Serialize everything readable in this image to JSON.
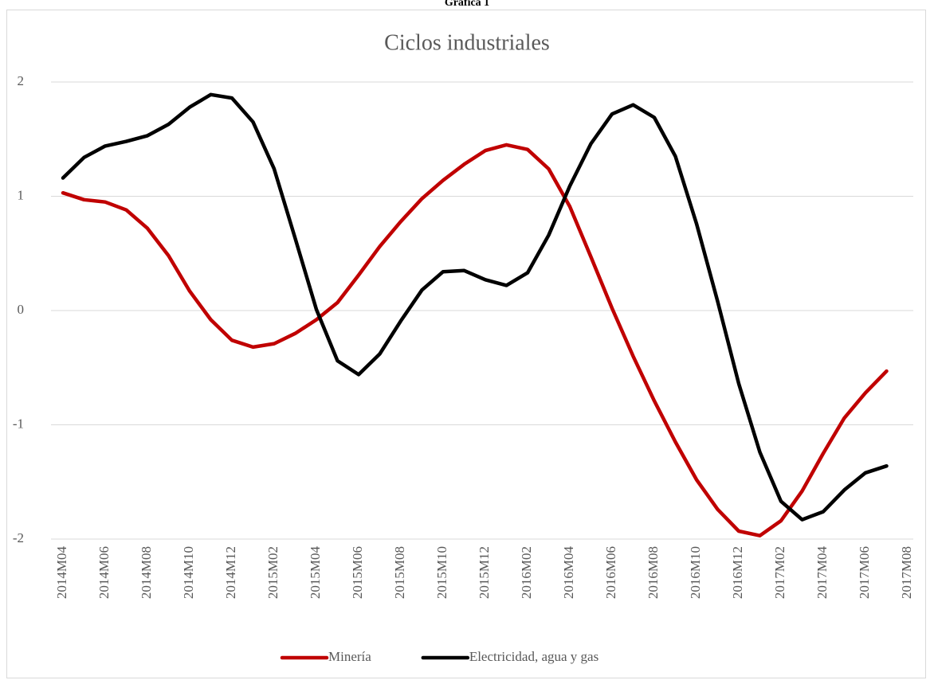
{
  "heading": "Gráfica 1",
  "chart_data": {
    "type": "line",
    "title": "Ciclos industriales",
    "categories": [
      "2014M04",
      null,
      "2014M06",
      null,
      "2014M08",
      null,
      "2014M10",
      null,
      "2014M12",
      null,
      "2015M02",
      null,
      "2015M04",
      null,
      "2015M06",
      null,
      "2015M08",
      null,
      "2015M10",
      null,
      "2015M12",
      null,
      "2016M02",
      null,
      "2016M04",
      null,
      "2016M06",
      null,
      "2016M08",
      null,
      "2016M10",
      null,
      "2016M12",
      null,
      "2017M02",
      null,
      "2017M04",
      null,
      "2017M06",
      null,
      "2017M08"
    ],
    "series": [
      {
        "name": "Minería",
        "color": "#c00000",
        "values": [
          1.03,
          0.97,
          0.95,
          0.88,
          0.72,
          0.48,
          0.17,
          -0.08,
          -0.26,
          -0.32,
          -0.29,
          -0.2,
          -0.08,
          0.07,
          0.31,
          0.56,
          0.78,
          0.98,
          1.14,
          1.28,
          1.4,
          1.45,
          1.41,
          1.24,
          0.91,
          0.47,
          0.02,
          -0.4,
          -0.79,
          -1.15,
          -1.48,
          -1.74,
          -1.93,
          -1.97,
          -1.84,
          -1.58,
          -1.25,
          -0.94,
          -0.72,
          -0.53,
          null
        ]
      },
      {
        "name": "Electricidad, agua y gas",
        "color": "#000000",
        "values": [
          1.16,
          1.34,
          1.44,
          1.48,
          1.53,
          1.63,
          1.78,
          1.89,
          1.86,
          1.65,
          1.24,
          0.63,
          0.01,
          -0.44,
          -0.56,
          -0.38,
          -0.09,
          0.18,
          0.34,
          0.35,
          0.27,
          0.22,
          0.33,
          0.66,
          1.09,
          1.46,
          1.72,
          1.8,
          1.69,
          1.35,
          0.76,
          0.08,
          -0.64,
          -1.24,
          -1.67,
          -1.83,
          -1.76,
          -1.57,
          -1.42,
          -1.36,
          null
        ]
      }
    ],
    "ylim": [
      -2,
      2
    ],
    "yticks": [
      -2,
      -1,
      0,
      1,
      2
    ],
    "grid": true,
    "legend": "bottom"
  }
}
